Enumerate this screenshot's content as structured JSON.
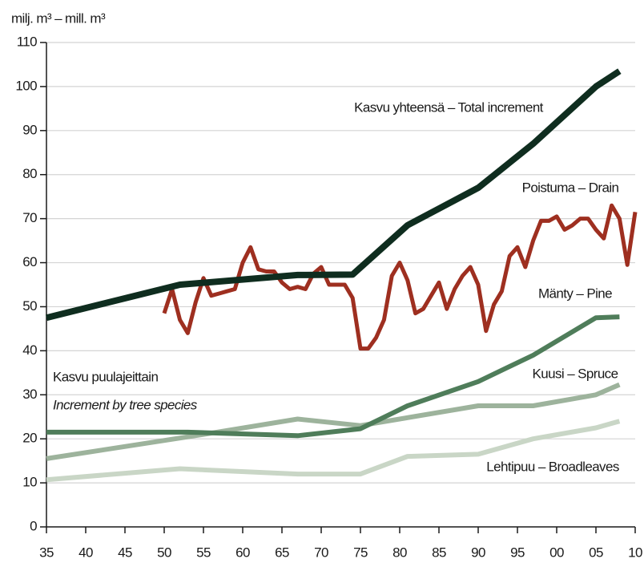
{
  "chart_data": {
    "type": "line",
    "y_label": "milj. m³ – mill. m³",
    "annotations": [
      "Kasvu puulajeittain",
      "Increment by tree species"
    ],
    "xlim": [
      1935,
      2010
    ],
    "ylim": [
      0,
      110
    ],
    "xticks": [
      {
        "value": 1935,
        "label": "35"
      },
      {
        "value": 1940,
        "label": "40"
      },
      {
        "value": 1945,
        "label": "45"
      },
      {
        "value": 1950,
        "label": "50"
      },
      {
        "value": 1955,
        "label": "55"
      },
      {
        "value": 1960,
        "label": "60"
      },
      {
        "value": 1965,
        "label": "65"
      },
      {
        "value": 1970,
        "label": "70"
      },
      {
        "value": 1975,
        "label": "75"
      },
      {
        "value": 1980,
        "label": "80"
      },
      {
        "value": 1985,
        "label": "85"
      },
      {
        "value": 1990,
        "label": "90"
      },
      {
        "value": 1995,
        "label": "95"
      },
      {
        "value": 2000,
        "label": "00"
      },
      {
        "value": 2005,
        "label": "05"
      },
      {
        "value": 2010,
        "label": "10"
      }
    ],
    "yticks": [
      0,
      10,
      20,
      30,
      40,
      50,
      60,
      70,
      80,
      90,
      100,
      110
    ],
    "grid": true,
    "series": [
      {
        "name": "Kasvu yhteensä – Total increment",
        "color": "#0f2d1f",
        "width": 8,
        "x": [
          1935,
          1952,
          1967,
          1974,
          1981,
          1990,
          1997,
          2005,
          2008
        ],
        "values": [
          47.5,
          55,
          57.2,
          57.3,
          68.5,
          77,
          87,
          100,
          103.5
        ]
      },
      {
        "name": "Poistuma – Drain",
        "color": "#9e2f20",
        "width": 5,
        "x": [
          1950,
          1951,
          1952,
          1953,
          1954,
          1955,
          1956,
          1957,
          1958,
          1959,
          1960,
          1961,
          1962,
          1963,
          1964,
          1965,
          1966,
          1967,
          1968,
          1969,
          1970,
          1971,
          1972,
          1973,
          1974,
          1975,
          1976,
          1977,
          1978,
          1979,
          1980,
          1981,
          1982,
          1983,
          1984,
          1985,
          1986,
          1987,
          1988,
          1989,
          1990,
          1991,
          1992,
          1993,
          1994,
          1995,
          1996,
          1997,
          1998,
          1999,
          2000,
          2001,
          2002,
          2003,
          2004,
          2005,
          2006,
          2007,
          2008,
          2009,
          2010
        ],
        "values": [
          48.5,
          54,
          47,
          44,
          51,
          56.5,
          52.5,
          53,
          53.5,
          54,
          60,
          63.5,
          58.5,
          58,
          58,
          55.5,
          54,
          54.5,
          54,
          57.5,
          59,
          55,
          55,
          55,
          52,
          40.5,
          40.5,
          43,
          47,
          57,
          60,
          56,
          48.5,
          49.5,
          52.5,
          55.5,
          49.5,
          54,
          57,
          59,
          55,
          44.5,
          50.5,
          53.5,
          61.5,
          63.5,
          59,
          65,
          69.5,
          69.5,
          70.5,
          67.5,
          68.5,
          70,
          70,
          67.5,
          65.5,
          73,
          70,
          59.5,
          71.5
        ]
      },
      {
        "name": "Mänty – Pine",
        "color": "#4f7d5a",
        "width": 6,
        "x": [
          1935,
          1953,
          1967,
          1975,
          1981,
          1990,
          1997,
          2005,
          2008
        ],
        "values": [
          21.5,
          21.5,
          20.7,
          22.3,
          27.5,
          33,
          39,
          47.5,
          47.7
        ]
      },
      {
        "name": "Kuusi – Spruce",
        "color": "#9db39c",
        "width": 6,
        "x": [
          1935,
          1955,
          1967,
          1975,
          1990,
          1997,
          2005,
          2008
        ],
        "values": [
          15.5,
          21,
          24.5,
          23,
          27.5,
          27.5,
          30,
          32.3
        ]
      },
      {
        "name": "Lehtipuu – Broadleaves",
        "color": "#c9d6c6",
        "width": 6,
        "x": [
          1935,
          1952,
          1967,
          1975,
          1981,
          1990,
          1997,
          2005,
          2008
        ],
        "values": [
          10.7,
          13.2,
          12,
          12,
          16,
          16.5,
          20,
          22.5,
          24
        ]
      }
    ]
  }
}
